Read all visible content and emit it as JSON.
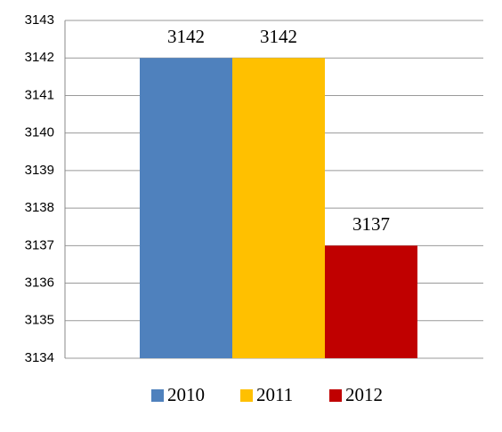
{
  "chart_data": {
    "type": "bar",
    "categories": [
      null
    ],
    "series": [
      {
        "name": "2010",
        "color": "#4f81bd",
        "values": [
          3142
        ]
      },
      {
        "name": "2011",
        "color": "#ffc000",
        "values": [
          3142
        ]
      },
      {
        "name": "2012",
        "color": "#c00000",
        "values": [
          3137
        ]
      }
    ],
    "ylim": [
      3134,
      3143
    ],
    "yticks": [
      3134,
      3135,
      3136,
      3137,
      3138,
      3139,
      3140,
      3141,
      3142,
      3143
    ],
    "grid": true,
    "legend": "bottom",
    "data_labels": true
  }
}
